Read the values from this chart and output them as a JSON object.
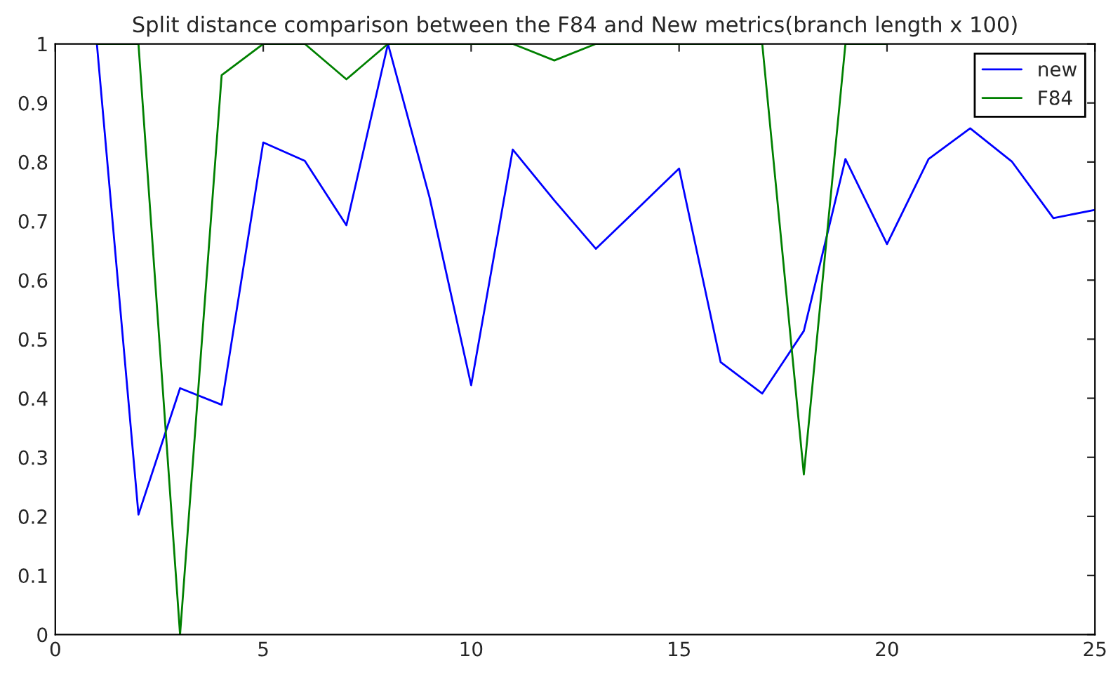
{
  "chart_data": {
    "type": "line",
    "title": "Split distance comparison between the F84 and New metrics(branch length x 100)",
    "x": [
      1,
      2,
      3,
      4,
      5,
      6,
      7,
      8,
      9,
      10,
      11,
      12,
      13,
      14,
      15,
      16,
      17,
      18,
      19,
      20,
      21,
      22,
      23,
      24,
      25
    ],
    "series": [
      {
        "name": "new",
        "color": "#0000ff",
        "values": [
          1,
          0.203,
          0.417,
          0.389,
          0.833,
          0.802,
          0.693,
          1,
          0.74,
          0.422,
          0.821,
          0.735,
          0.653,
          0.721,
          0.789,
          0.461,
          0.408,
          0.514,
          0.805,
          0.661,
          0.805,
          0.857,
          0.801,
          0.705,
          0.719
        ]
      },
      {
        "name": "F84",
        "color": "#008000",
        "values": [
          1,
          1,
          0,
          0.947,
          1,
          1,
          0.94,
          1,
          1,
          1,
          1,
          0.972,
          1,
          1,
          1,
          1,
          1,
          0.271,
          1,
          1,
          null,
          null,
          null,
          null,
          null
        ]
      }
    ],
    "xlim": [
      0,
      25
    ],
    "ylim": [
      0,
      1
    ],
    "xticks": [
      0,
      5,
      10,
      15,
      20,
      25
    ],
    "yticks": [
      0,
      {
        "value": 0.1,
        "label": "0.1"
      },
      {
        "value": 0.2,
        "label": "0.2"
      },
      {
        "value": 0.3,
        "label": "0.3"
      },
      {
        "value": 0.4,
        "label": "0.4"
      },
      {
        "value": 0.5,
        "label": "0.5"
      },
      {
        "value": 0.6,
        "label": "0.6"
      },
      {
        "value": 0.7,
        "label": "0.7"
      },
      {
        "value": 0.8,
        "label": "0.8"
      },
      {
        "value": 0.9,
        "label": "0.9"
      },
      1
    ],
    "grid": false,
    "legend": "top right",
    "line_style": "solid",
    "marker": "none"
  }
}
